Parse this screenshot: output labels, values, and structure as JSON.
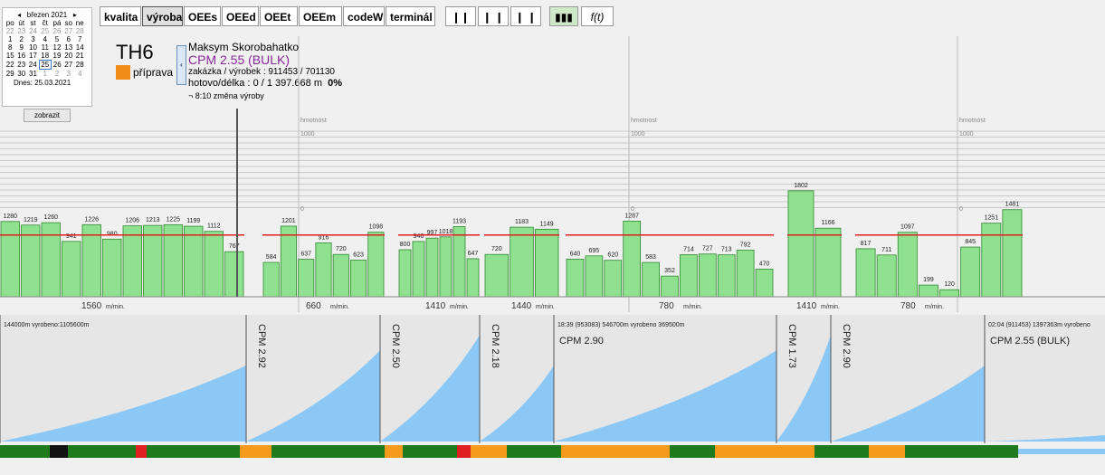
{
  "calendar": {
    "month": "březen 2021",
    "weekdays": [
      "po",
      "út",
      "st",
      "čt",
      "pá",
      "so",
      "ne"
    ],
    "weeks": [
      [
        "22",
        "23",
        "24",
        "25",
        "26",
        "27",
        "28"
      ],
      [
        "1",
        "2",
        "3",
        "4",
        "5",
        "6",
        "7"
      ],
      [
        "8",
        "9",
        "10",
        "11",
        "12",
        "13",
        "14"
      ],
      [
        "15",
        "16",
        "17",
        "18",
        "19",
        "20",
        "21"
      ],
      [
        "22",
        "23",
        "24",
        "25",
        "26",
        "27",
        "28"
      ],
      [
        "29",
        "30",
        "31",
        "1",
        "2",
        "3",
        "4"
      ]
    ],
    "today": "Dnes: 25.03.2021",
    "button": "zobrazit"
  },
  "toolbar": {
    "tabs": [
      "kvalita",
      "výroba",
      "OEEs",
      "OEEd",
      "OEEt",
      "OEEm",
      "codeW",
      "terminál"
    ],
    "selected": "výroba"
  },
  "machine": {
    "name": "TH6",
    "status": "příprava"
  },
  "job": {
    "operator": "Maksym Skorobahatko",
    "product": "CPM 2.55 (BULK)",
    "order_label": "zakázka / výrobek :",
    "order": "911453 / 701130",
    "progress_label": "hotovo/délka :",
    "progress": "0 / 1 397.668 m",
    "percent": "0%",
    "change": "8:10 změna výroby"
  },
  "weight_axis": {
    "label": "hmotnost",
    "ticks": [
      "1000",
      "0"
    ]
  },
  "speed_unit": "m/min.",
  "segments": [
    {
      "speed": "1560",
      "bars": [
        1280,
        1219,
        1260,
        941,
        1226,
        980,
        1206,
        1213,
        1225,
        1199,
        1112,
        767
      ]
    },
    {
      "speed": "660",
      "bars": [
        584,
        1201,
        637,
        916,
        720,
        623,
        1098
      ]
    },
    {
      "speed": "1410",
      "bars": [
        800,
        940,
        997,
        1018,
        1193,
        647
      ]
    },
    {
      "speed": "1440",
      "bars": [
        720,
        1183,
        1149
      ]
    },
    {
      "speed": "780",
      "bars": [
        640,
        695,
        620,
        1287,
        583,
        352,
        714,
        727,
        713,
        792,
        470
      ]
    },
    {
      "speed": "1410",
      "bars": [
        1802,
        1166
      ]
    },
    {
      "speed": "780",
      "bars": [
        817,
        711,
        1097,
        199,
        120,
        845,
        1251,
        1481
      ]
    }
  ],
  "rolls": [
    {
      "info": "144000m  vyrobeno:1105600m"
    },
    {
      "title": "CPM 2.92"
    },
    {
      "title": "CPM 2.50"
    },
    {
      "title": "CPM 2.18"
    },
    {
      "title": "CPM 2.90",
      "info": "18:39  (953083)  546700m  vyrobeno 369500m"
    },
    {
      "title": "CPM 1.73"
    },
    {
      "title": "CPM 2.90"
    },
    {
      "title": "CPM 2.55 (BULK)",
      "info": "02:04  (911453)  1397363m  vyrobeno"
    }
  ]
}
